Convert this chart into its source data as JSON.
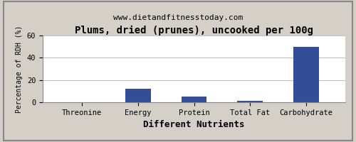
{
  "title": "Plums, dried (prunes), uncooked per 100g",
  "subtitle": "www.dietandfitnesstoday.com",
  "xlabel": "Different Nutrients",
  "ylabel": "Percentage of RDH (%)",
  "categories": [
    "Threonine",
    "Energy",
    "Protein",
    "Total Fat",
    "Carbohydrate"
  ],
  "values": [
    0.1,
    12.0,
    5.0,
    1.0,
    49.5
  ],
  "bar_color": "#334d99",
  "ylim": [
    0,
    60
  ],
  "yticks": [
    0,
    20,
    40,
    60
  ],
  "figure_bg_color": "#d4d0c8",
  "plot_bg_color": "#ffffff",
  "title_fontsize": 10,
  "subtitle_fontsize": 8,
  "xlabel_fontsize": 9,
  "ylabel_fontsize": 7,
  "tick_fontsize": 7.5,
  "grid_color": "#c0c0c0",
  "border_color": "#888888"
}
